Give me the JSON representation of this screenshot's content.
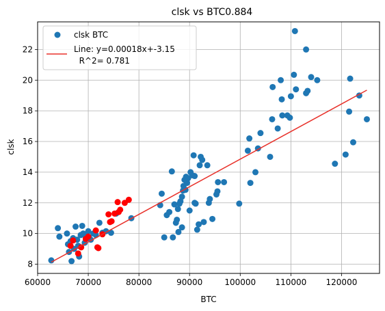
{
  "chart_data": {
    "type": "scatter",
    "title": "clsk vs BTC0.884",
    "xlabel": "BTC",
    "ylabel": "clsk",
    "xlim": [
      60000,
      127500
    ],
    "ylim": [
      7.4,
      23.8
    ],
    "xticks": [
      60000,
      70000,
      80000,
      90000,
      100000,
      110000,
      120000
    ],
    "yticks": [
      8,
      10,
      12,
      14,
      16,
      18,
      20,
      22
    ],
    "grid": true,
    "legend_position": "top-left",
    "series": [
      {
        "name": "clsk BTC",
        "color": "#1f77b4",
        "points": [
          [
            62700,
            8.25
          ],
          [
            64000,
            10.35
          ],
          [
            64300,
            9.8
          ],
          [
            65800,
            10.0
          ],
          [
            66000,
            9.3
          ],
          [
            66200,
            8.8
          ],
          [
            66500,
            9.5
          ],
          [
            66700,
            8.2
          ],
          [
            67000,
            9.7
          ],
          [
            67200,
            9.0
          ],
          [
            67500,
            10.45
          ],
          [
            67800,
            9.6
          ],
          [
            68000,
            9.2
          ],
          [
            68200,
            8.5
          ],
          [
            68500,
            9.9
          ],
          [
            68800,
            10.5
          ],
          [
            69000,
            10.0
          ],
          [
            69300,
            9.4
          ],
          [
            69500,
            9.8
          ],
          [
            70000,
            10.15
          ],
          [
            70200,
            9.7
          ],
          [
            70500,
            9.6
          ],
          [
            71000,
            10.0
          ],
          [
            71500,
            9.9
          ],
          [
            72200,
            10.7
          ],
          [
            72800,
            10.05
          ],
          [
            73500,
            10.15
          ],
          [
            74500,
            10.05
          ],
          [
            75500,
            11.3
          ],
          [
            78500,
            11.0
          ],
          [
            84500,
            12.6
          ],
          [
            84200,
            11.85
          ],
          [
            85000,
            9.75
          ],
          [
            85500,
            11.2
          ],
          [
            86000,
            11.4
          ],
          [
            86500,
            14.05
          ],
          [
            86700,
            9.75
          ],
          [
            87000,
            11.9
          ],
          [
            87300,
            10.7
          ],
          [
            87500,
            10.9
          ],
          [
            87700,
            11.6
          ],
          [
            87800,
            10.1
          ],
          [
            88000,
            11.95
          ],
          [
            88200,
            12.1
          ],
          [
            88500,
            12.4
          ],
          [
            88500,
            10.4
          ],
          [
            88700,
            12.8
          ],
          [
            88800,
            13.1
          ],
          [
            89000,
            13.5
          ],
          [
            89200,
            12.85
          ],
          [
            89300,
            13.7
          ],
          [
            89500,
            13.3
          ],
          [
            89700,
            13.6
          ],
          [
            90000,
            11.5
          ],
          [
            90200,
            14.0
          ],
          [
            90500,
            13.8
          ],
          [
            90800,
            15.1
          ],
          [
            91000,
            13.75
          ],
          [
            91000,
            12.0
          ],
          [
            91200,
            11.95
          ],
          [
            91500,
            10.25
          ],
          [
            91800,
            10.6
          ],
          [
            92000,
            14.45
          ],
          [
            92200,
            15.0
          ],
          [
            92500,
            14.8
          ],
          [
            92800,
            10.75
          ],
          [
            93500,
            14.45
          ],
          [
            93800,
            12.0
          ],
          [
            94000,
            12.25
          ],
          [
            94500,
            10.95
          ],
          [
            95300,
            12.55
          ],
          [
            95500,
            12.75
          ],
          [
            95600,
            13.35
          ],
          [
            96800,
            13.35
          ],
          [
            99800,
            11.95
          ],
          [
            101500,
            15.4
          ],
          [
            101800,
            16.2
          ],
          [
            102000,
            13.3
          ],
          [
            103000,
            14.0
          ],
          [
            103500,
            15.55
          ],
          [
            104000,
            16.55
          ],
          [
            105900,
            15.0
          ],
          [
            106300,
            17.45
          ],
          [
            106400,
            19.55
          ],
          [
            107400,
            16.85
          ],
          [
            108000,
            20.0
          ],
          [
            108200,
            18.75
          ],
          [
            108300,
            17.7
          ],
          [
            109300,
            17.7
          ],
          [
            109800,
            17.55
          ],
          [
            110000,
            18.95
          ],
          [
            110600,
            20.35
          ],
          [
            110800,
            23.2
          ],
          [
            111000,
            19.4
          ],
          [
            113000,
            19.15
          ],
          [
            113300,
            19.3
          ],
          [
            113000,
            22.0
          ],
          [
            114000,
            20.2
          ],
          [
            115200,
            20.0
          ],
          [
            118700,
            14.55
          ],
          [
            120800,
            15.15
          ],
          [
            121500,
            17.95
          ],
          [
            121700,
            20.1
          ],
          [
            122300,
            15.95
          ],
          [
            123500,
            19.0
          ],
          [
            125000,
            17.45
          ]
        ]
      },
      {
        "color": "#ff0000",
        "points": [
          [
            66500,
            9.2
          ],
          [
            67000,
            9.55
          ],
          [
            68000,
            8.7
          ],
          [
            68600,
            9.1
          ],
          [
            69500,
            9.65
          ],
          [
            70000,
            9.8
          ],
          [
            71500,
            10.2
          ],
          [
            71800,
            9.1
          ],
          [
            72000,
            9.05
          ],
          [
            72800,
            9.95
          ],
          [
            74000,
            11.25
          ],
          [
            74300,
            10.75
          ],
          [
            74600,
            10.8
          ],
          [
            75200,
            11.3
          ],
          [
            75800,
            12.05
          ],
          [
            76000,
            11.4
          ],
          [
            76300,
            11.55
          ],
          [
            77200,
            12.0
          ],
          [
            78000,
            12.2
          ]
        ]
      }
    ],
    "fit_line": {
      "name": "Line: y=0.00018x+-3.15\n  R^2= 0.781",
      "label_line1": "Line: y=0.00018x+-3.15",
      "label_line2": "  R^2= 0.781",
      "color": "#e8312a",
      "x_start": 62700,
      "x_end": 125000,
      "slope": 0.00018,
      "intercept": -3.15
    }
  }
}
